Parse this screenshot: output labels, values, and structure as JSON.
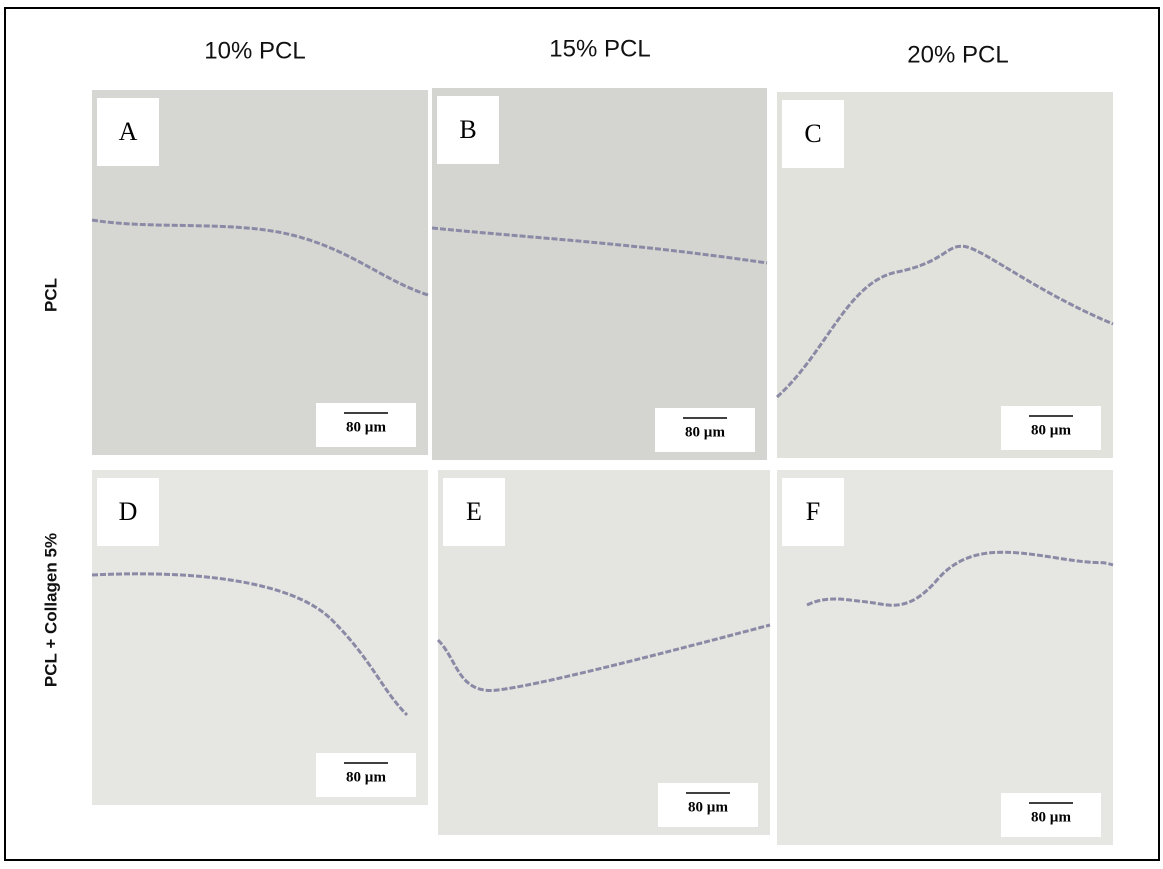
{
  "column_headers": [
    "10% PCL",
    "15% PCL",
    "20% PCL"
  ],
  "row_labels": [
    "PCL",
    "PCL + Collagen 5%"
  ],
  "panels": [
    {
      "letter": "A",
      "scale_bar": "80 µm"
    },
    {
      "letter": "B",
      "scale_bar": "80 µm"
    },
    {
      "letter": "C",
      "scale_bar": "80 µm"
    },
    {
      "letter": "D",
      "scale_bar": "80 µm"
    },
    {
      "letter": "E",
      "scale_bar": "80 µm"
    },
    {
      "letter": "F",
      "scale_bar": "80 µm"
    }
  ]
}
